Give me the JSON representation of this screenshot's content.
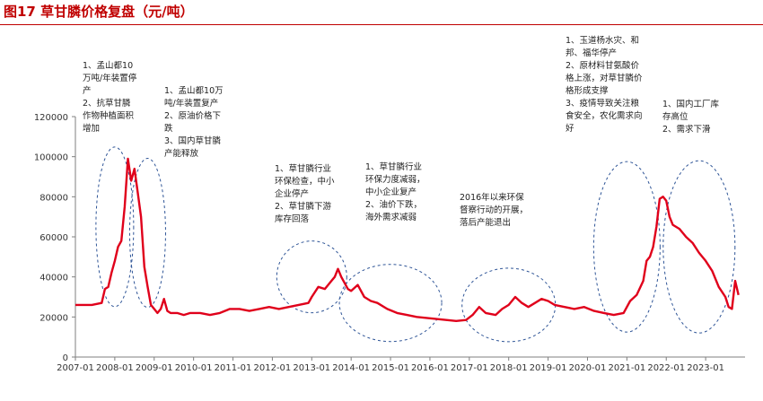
{
  "header": {
    "title": "图17  草甘膦价格复盘（元/吨）"
  },
  "colors": {
    "title": "#c00000",
    "line": "#e0001b",
    "ellipse": "#2f5597",
    "axis": "#7f7f7f"
  },
  "chart_data": {
    "type": "line",
    "title": "图17  草甘膦价格复盘（元/吨）",
    "xlabel": "",
    "ylabel": "",
    "ylim": [
      0,
      120000
    ],
    "yticks": [
      0,
      20000,
      40000,
      60000,
      80000,
      100000,
      120000
    ],
    "ytick_labels": [
      "0",
      "20000",
      "40000",
      "60000",
      "80000",
      "100000",
      "120000"
    ],
    "xlim": [
      "2007-01",
      "2023-12"
    ],
    "xtick_labels": [
      "2007-01",
      "2008-01",
      "2009-01",
      "2010-01",
      "2011-01",
      "2012-01",
      "2013-01",
      "2014-01",
      "2015-01",
      "2016-01",
      "2017-01",
      "2018-01",
      "2019-01",
      "2020-01",
      "2021-01",
      "2022-01",
      "2023-01"
    ],
    "grid": false,
    "series": [
      {
        "name": "",
        "x": [
          "2007-01",
          "2007-06",
          "2007-09",
          "2007-10",
          "2007-11",
          "2007-12",
          "2008-01",
          "2008-02",
          "2008-03",
          "2008-04",
          "2008-05",
          "2008-06",
          "2008-07",
          "2008-08",
          "2008-09",
          "2008-10",
          "2008-11",
          "2008-12",
          "2009-01",
          "2009-02",
          "2009-03",
          "2009-04",
          "2009-05",
          "2009-06",
          "2009-08",
          "2009-10",
          "2009-12",
          "2010-03",
          "2010-06",
          "2010-09",
          "2010-12",
          "2011-03",
          "2011-06",
          "2011-09",
          "2011-12",
          "2012-03",
          "2012-06",
          "2012-09",
          "2012-12",
          "2013-01",
          "2013-03",
          "2013-05",
          "2013-07",
          "2013-08",
          "2013-09",
          "2013-10",
          "2013-12",
          "2014-01",
          "2014-03",
          "2014-05",
          "2014-07",
          "2014-09",
          "2014-12",
          "2015-03",
          "2015-06",
          "2015-09",
          "2015-12",
          "2016-03",
          "2016-06",
          "2016-09",
          "2016-12",
          "2017-02",
          "2017-04",
          "2017-06",
          "2017-09",
          "2017-11",
          "2018-01",
          "2018-03",
          "2018-05",
          "2018-07",
          "2018-09",
          "2018-11",
          "2019-01",
          "2019-03",
          "2019-06",
          "2019-09",
          "2019-12",
          "2020-03",
          "2020-06",
          "2020-09",
          "2020-12",
          "2021-02",
          "2021-04",
          "2021-06",
          "2021-07",
          "2021-08",
          "2021-09",
          "2021-10",
          "2021-11",
          "2021-12",
          "2022-01",
          "2022-02",
          "2022-03",
          "2022-05",
          "2022-07",
          "2022-09",
          "2022-11",
          "2023-01",
          "2023-03",
          "2023-05",
          "2023-07",
          "2023-08",
          "2023-09",
          "2023-10",
          "2023-11"
        ],
        "values": [
          26000,
          26000,
          27000,
          34000,
          35000,
          42000,
          48000,
          55000,
          58000,
          75000,
          99000,
          88000,
          94000,
          82000,
          70000,
          45000,
          35000,
          26000,
          24000,
          22000,
          24000,
          29000,
          23000,
          22000,
          22000,
          21000,
          22000,
          22000,
          21000,
          22000,
          24000,
          24000,
          23000,
          24000,
          25000,
          24000,
          25000,
          26000,
          27000,
          30000,
          35000,
          34000,
          38000,
          40000,
          44000,
          40000,
          34000,
          33000,
          36000,
          30000,
          28000,
          27000,
          24000,
          22000,
          21000,
          20000,
          19500,
          19000,
          18500,
          18000,
          18500,
          21000,
          25000,
          22000,
          21000,
          24000,
          26000,
          30000,
          27000,
          25000,
          27000,
          29000,
          28000,
          26000,
          25000,
          24000,
          25000,
          23000,
          22000,
          21000,
          22000,
          28000,
          31000,
          38000,
          48000,
          50000,
          55000,
          65000,
          79000,
          80000,
          78000,
          70000,
          66000,
          64000,
          60000,
          57000,
          52000,
          48000,
          43000,
          35000,
          30000,
          25000,
          24000,
          38000,
          31000
        ]
      }
    ],
    "annotations": [
      {
        "lines": [
          "1、孟山都10",
          "万吨/年装置停",
          "产",
          "2、抗草甘膦",
          "作物种植面积",
          "增加"
        ]
      },
      {
        "lines": [
          "1、孟山都10万",
          "吨/年装置复产",
          "2、原油价格下",
          "跌",
          "3、国内草甘膦",
          "产能释放"
        ]
      },
      {
        "lines": [
          "1、草甘膦行业",
          "环保检查，中小",
          "企业停产",
          "2、草甘膦下游",
          "库存回落"
        ]
      },
      {
        "lines": [
          "1、草甘膦行业",
          "环保力度减弱，",
          "中小企业复产",
          "2、油价下跌，",
          "海外需求减弱"
        ]
      },
      {
        "lines": [
          "2016年以来环保",
          "督察行动的开展，",
          "落后产能退出"
        ]
      },
      {
        "lines": [
          "1、玉道杨水灾、和",
          "邦、福华停产",
          "2、原材料甘氨酸价",
          "格上涨，对草甘膦价",
          "格形成支撑",
          "3、疫情导致关注粮",
          "食安全，农化需求向",
          "好"
        ]
      },
      {
        "lines": [
          "1、国内工厂库",
          "存高位",
          "2、需求下滑"
        ]
      }
    ]
  }
}
